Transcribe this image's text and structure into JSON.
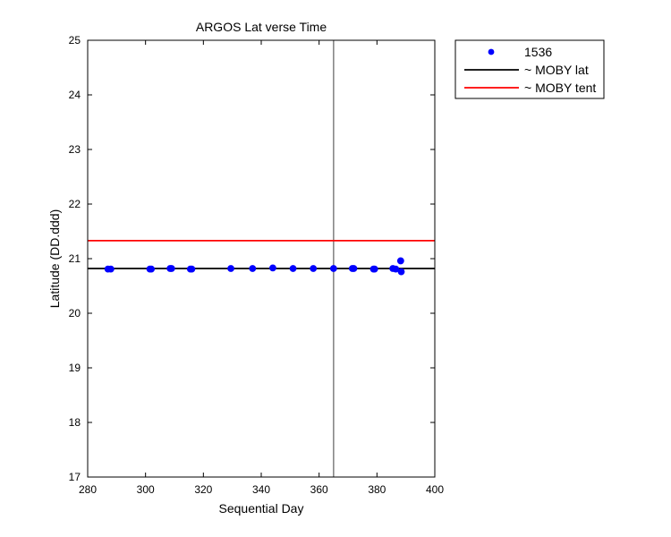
{
  "chart_data": {
    "type": "scatter",
    "title": "ARGOS Lat verse Time",
    "xlabel": "Sequential Day",
    "ylabel": "Latitude (DD.ddd)",
    "xlim": [
      280,
      400
    ],
    "ylim": [
      17,
      25
    ],
    "x_ticks": [
      280,
      300,
      320,
      340,
      360,
      380,
      400
    ],
    "y_ticks": [
      17,
      18,
      19,
      20,
      21,
      22,
      23,
      24,
      25
    ],
    "grid": false,
    "legend_position": "outside-top-right",
    "series": [
      {
        "name": "1536",
        "type": "scatter",
        "color": "#0000ff",
        "points": [
          [
            287,
            20.81
          ],
          [
            288,
            20.81
          ],
          [
            301.5,
            20.81
          ],
          [
            302,
            20.81
          ],
          [
            308.5,
            20.82
          ],
          [
            309,
            20.82
          ],
          [
            315.5,
            20.81
          ],
          [
            316,
            20.81
          ],
          [
            329.5,
            20.82
          ],
          [
            337,
            20.82
          ],
          [
            344,
            20.83
          ],
          [
            351,
            20.82
          ],
          [
            358,
            20.82
          ],
          [
            365,
            20.82
          ],
          [
            371.5,
            20.82
          ],
          [
            372,
            20.82
          ],
          [
            378.8,
            20.81
          ],
          [
            379.2,
            20.81
          ],
          [
            385.5,
            20.82
          ],
          [
            386.5,
            20.81
          ],
          [
            388.2,
            20.96
          ],
          [
            388.4,
            20.76
          ]
        ]
      },
      {
        "name": "~ MOBY lat",
        "type": "hline",
        "color": "#000000",
        "y": 20.82
      },
      {
        "name": "~ MOBY tent",
        "type": "hline",
        "color": "#ff0000",
        "y": 21.33
      }
    ],
    "vlines": [
      {
        "x": 365,
        "color": "#808080"
      }
    ]
  }
}
